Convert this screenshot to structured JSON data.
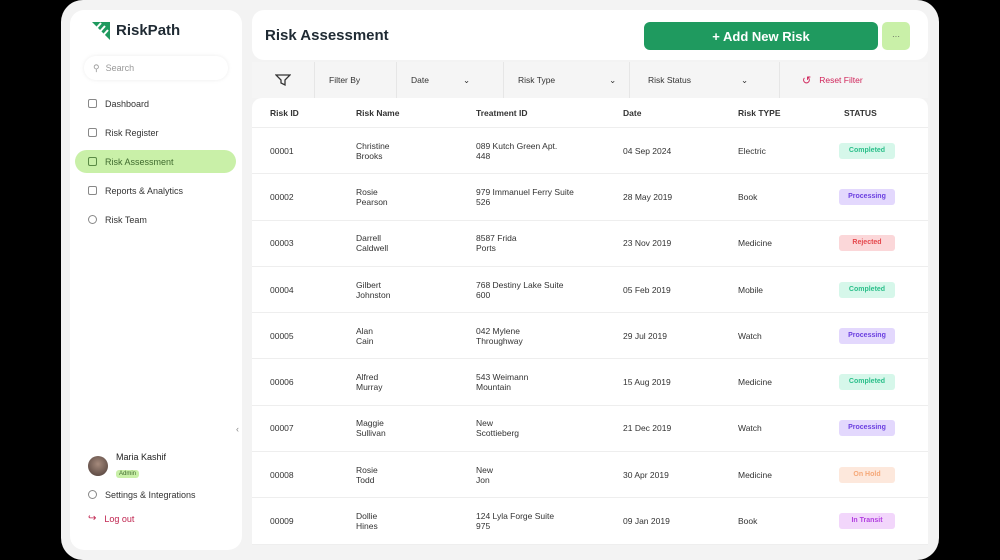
{
  "app": {
    "name": "RiskPath"
  },
  "sidebar": {
    "search_placeholder": "Search",
    "items": [
      {
        "label": "Dashboard",
        "active": false
      },
      {
        "label": "Risk Register",
        "active": false
      },
      {
        "label": "Risk Assessment",
        "active": true
      },
      {
        "label": "Reports & Analytics",
        "active": false
      },
      {
        "label": "Risk Team",
        "active": false
      }
    ],
    "user": {
      "name": "Maria Kashif",
      "role": "Admin"
    },
    "settings": "Settings & Integrations",
    "logout": "Log out"
  },
  "header": {
    "title": "Risk Assessment",
    "add_button": "+ Add  New Risk",
    "more": "···"
  },
  "filters": {
    "filter_by": "Filter By",
    "date": "Date",
    "risk_type": "Risk Type",
    "risk_status": "Risk Status",
    "reset": "Reset Filter"
  },
  "table": {
    "columns": [
      "Risk ID",
      "Risk Name",
      "Treatment ID",
      "Date",
      "Risk TYPE",
      "STATUS"
    ],
    "rows": [
      {
        "id": "00001",
        "name": [
          "Christine",
          "Brooks"
        ],
        "treatment": [
          "089 Kutch Green Apt.",
          "448"
        ],
        "date": "04 Sep 2024",
        "type": "Electric",
        "status": "Completed"
      },
      {
        "id": "00002",
        "name": [
          "Rosie",
          "Pearson"
        ],
        "treatment": [
          "979 Immanuel Ferry Suite",
          "526"
        ],
        "date": "28 May 2019",
        "type": "Book",
        "status": "Processing"
      },
      {
        "id": "00003",
        "name": [
          "Darrell",
          "Caldwell"
        ],
        "treatment": [
          "8587 Frida",
          "Ports"
        ],
        "date": "23 Nov 2019",
        "type": "Medicine",
        "status": "Rejected"
      },
      {
        "id": "00004",
        "name": [
          "Gilbert",
          "Johnston"
        ],
        "treatment": [
          "768 Destiny Lake Suite",
          "600"
        ],
        "date": "05 Feb 2019",
        "type": "Mobile",
        "status": "Completed"
      },
      {
        "id": "00005",
        "name": [
          "Alan",
          "Cain"
        ],
        "treatment": [
          "042 Mylene",
          "Throughway"
        ],
        "date": "29 Jul 2019",
        "type": "Watch",
        "status": "Processing"
      },
      {
        "id": "00006",
        "name": [
          "Alfred",
          "Murray"
        ],
        "treatment": [
          "543 Weimann",
          "Mountain"
        ],
        "date": "15 Aug 2019",
        "type": "Medicine",
        "status": "Completed"
      },
      {
        "id": "00007",
        "name": [
          "Maggie",
          "Sullivan"
        ],
        "treatment": [
          "New",
          "Scottieberg"
        ],
        "date": "21 Dec 2019",
        "type": "Watch",
        "status": "Processing"
      },
      {
        "id": "00008",
        "name": [
          "Rosie",
          "Todd"
        ],
        "treatment": [
          "New",
          "Jon"
        ],
        "date": "30 Apr 2019",
        "type": "Medicine",
        "status": "On Hold"
      },
      {
        "id": "00009",
        "name": [
          "Dollie",
          "Hines"
        ],
        "treatment": [
          "124 Lyla Forge Suite",
          "975"
        ],
        "date": "09 Jan 2019",
        "type": "Book",
        "status": "In Transit"
      }
    ]
  },
  "status_colors": {
    "Completed": [
      "#d6f7ea",
      "#2bbf8a"
    ],
    "Processing": [
      "#e3d8fd",
      "#6b3fe0"
    ],
    "Rejected": [
      "#fbd7d9",
      "#e5484d"
    ],
    "On Hold": [
      "#fde8dc",
      "#f5a878"
    ],
    "In Transit": [
      "#f2d6fb",
      "#b23fe0"
    ]
  },
  "colors": {
    "brand": "#1f9a5f",
    "active_bg": "#c9f0a8",
    "danger": "#d0245a"
  }
}
